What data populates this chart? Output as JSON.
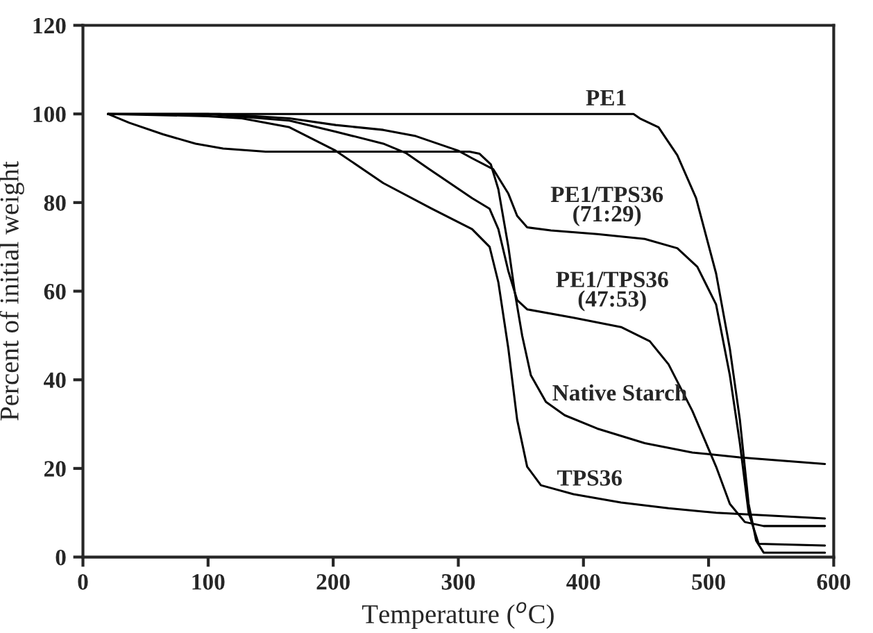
{
  "chart_data": {
    "type": "line",
    "xlabel": "Temperature ($^{o}$C)",
    "ylabel": "Percent of initial weight",
    "xlim": [
      0,
      600
    ],
    "ylim": [
      0,
      120
    ],
    "xticks": [
      0,
      100,
      200,
      300,
      400,
      500,
      600
    ],
    "yticks": [
      0,
      20,
      40,
      60,
      80,
      100,
      120
    ],
    "grid": false,
    "legend": false,
    "line_style": "solid",
    "marker": "none",
    "series": [
      {
        "color": "#000000",
        "x": [
          20,
          100,
          200,
          300,
          400,
          440,
          445,
          460,
          475,
          490,
          506,
          517,
          525,
          532,
          538,
          544,
          593
        ],
        "values": [
          100,
          100,
          100,
          100,
          100,
          100,
          99,
          97,
          90.7,
          81,
          64,
          47,
          31,
          12,
          3.7,
          1,
          1
        ]
      },
      {
        "color": "#000000",
        "x": [
          20,
          109,
          165,
          202,
          240,
          266,
          300,
          311,
          328,
          340,
          347,
          355,
          374,
          411,
          449,
          475,
          491,
          506,
          517,
          525,
          532,
          540,
          593
        ],
        "values": [
          100,
          100,
          99,
          97.5,
          96.4,
          95,
          91.7,
          90,
          87.5,
          82,
          77,
          74.4,
          73.7,
          72.9,
          71.8,
          69.7,
          65.5,
          57,
          41,
          25.7,
          10,
          3,
          2.6
        ]
      },
      {
        "color": "#000000",
        "x": [
          20,
          100,
          165,
          202,
          240,
          258,
          277,
          311,
          325,
          332,
          340,
          347,
          355,
          392,
          430,
          453,
          468,
          487,
          506,
          517,
          529,
          544,
          593
        ],
        "values": [
          100,
          100,
          98.5,
          96,
          93.3,
          91.2,
          87.5,
          81,
          78.6,
          74,
          64.5,
          58,
          55.9,
          54,
          51.9,
          48.7,
          43.5,
          33,
          20.4,
          12,
          7.9,
          7,
          7
        ]
      },
      {
        "color": "#000000",
        "x": [
          20,
          37,
          64,
          90,
          112,
          146,
          200,
          250,
          309,
          317,
          326,
          332,
          340,
          345,
          351,
          358,
          370,
          385,
          411,
          449,
          487,
          525,
          593
        ],
        "values": [
          100,
          98,
          95.4,
          93.3,
          92.2,
          91.5,
          91.5,
          91.5,
          91.5,
          91,
          88.6,
          83,
          70,
          60,
          50,
          41,
          35,
          32,
          29,
          25.7,
          23.6,
          22.5,
          21
        ]
      },
      {
        "color": "#000000",
        "x": [
          20,
          100,
          127,
          165,
          202,
          240,
          279,
          311,
          325,
          332,
          340,
          347,
          355,
          366,
          392,
          430,
          468,
          506,
          593
        ],
        "values": [
          100,
          99.5,
          99,
          97,
          91.7,
          84.4,
          78.6,
          74,
          70,
          62,
          47,
          31,
          20.4,
          16.2,
          14.2,
          12.3,
          11,
          10,
          8.7
        ]
      }
    ],
    "annotations": [
      "PE1",
      "PE1/TPS36\n(71:29)",
      "PE1/TPS36\n(47:53)",
      "Native Starch",
      "TPS36"
    ]
  }
}
